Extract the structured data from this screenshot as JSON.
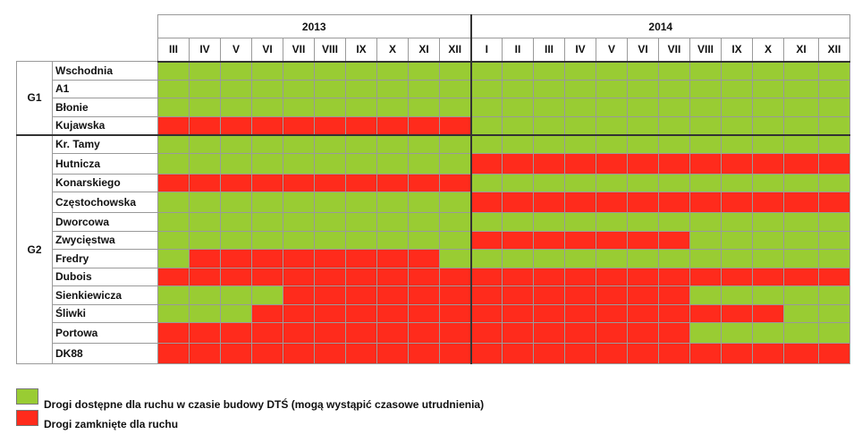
{
  "chart_data": {
    "type": "table",
    "years": [
      {
        "label": "2013",
        "months": [
          "III",
          "IV",
          "V",
          "VI",
          "VII",
          "VIII",
          "IX",
          "X",
          "XI",
          "XII"
        ]
      },
      {
        "label": "2014",
        "months": [
          "I",
          "II",
          "III",
          "IV",
          "V",
          "VI",
          "VII",
          "VIII",
          "IX",
          "X",
          "XI",
          "XII"
        ]
      }
    ],
    "status_codes": {
      "g": "open",
      "r": "closed"
    },
    "groups": [
      {
        "label": "G1",
        "roads": [
          {
            "name": "Wschodnia",
            "status": "gggggggggggggggggggggg"
          },
          {
            "name": "A1",
            "status": "gggggggggggggggggggggg"
          },
          {
            "name": "Błonie",
            "status": "gggggggggggggggggggggg"
          },
          {
            "name": "Kujawska",
            "status": "rrrrrrrrrrgggggggggggg"
          }
        ]
      },
      {
        "label": "G2",
        "roads": [
          {
            "name": "Kr. Tamy",
            "status": "gggggggggggggggggggggg"
          },
          {
            "name": "Hutnicza",
            "status": "ggggggggggrrrrrrrrrrrr"
          },
          {
            "name": "Konarskiego",
            "status": "rrrrrrrrrrgggggggggggg"
          },
          {
            "name": "Częstochowska",
            "status": "ggggggggggrrrrrrrrrrrr"
          },
          {
            "name": "Dworcowa",
            "status": "gggggggggggggggggggggg"
          },
          {
            "name": "Zwycięstwa",
            "status": "ggggggggggrrrrrrrggggg"
          },
          {
            "name": "Fredry",
            "status": "grrrrrrrrggggggggggggg"
          },
          {
            "name": "Dubois",
            "status": "rrrrrrrrrrrrrrrrrrrrrr"
          },
          {
            "name": "Sienkiewicza",
            "status": "ggggrrrrrrrrrrrrrggggg"
          },
          {
            "name": "Śliwki",
            "status": "gggrrrrrrrrrrrrrrrrrgg"
          },
          {
            "name": "Portowa",
            "status": "rrrrrrrrrrrrrrrrrggggg"
          },
          {
            "name": "DK88",
            "status": "rrrrrrrrrrrrrrrrrrrrrr"
          }
        ]
      }
    ]
  },
  "legend": {
    "open_label": "Drogi dostępne dla ruchu w czasie budowy DTŚ (mogą wystąpić czasowe utrudnienia)",
    "closed_label": "Drogi zamknięte dla ruchu"
  },
  "colors": {
    "open": "#99cc33",
    "closed": "#ff2b1c"
  }
}
